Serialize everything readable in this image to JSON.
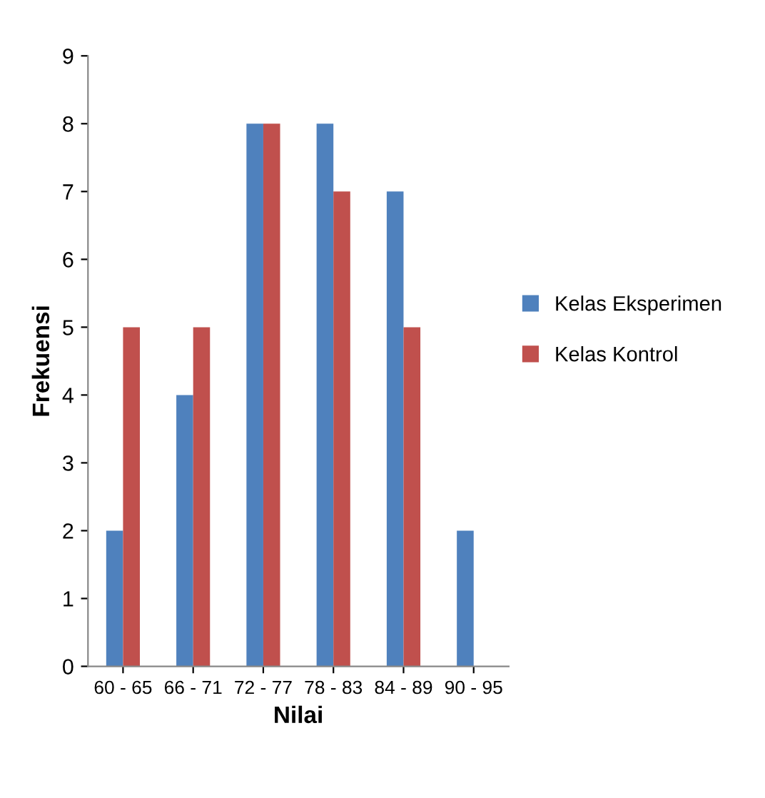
{
  "chart_data": {
    "type": "bar",
    "xlabel": "Nilai",
    "ylabel": "Frekuensi",
    "categories": [
      "60 - 65",
      "66 - 71",
      "72 - 77",
      "78 - 83",
      "84 - 89",
      "90 - 95"
    ],
    "series": [
      {
        "name": "Kelas Eksperimen",
        "color": "#4f81bd",
        "values": [
          2,
          4,
          8,
          8,
          7,
          2
        ]
      },
      {
        "name": "Kelas Kontrol",
        "color": "#c0504d",
        "values": [
          5,
          5,
          8,
          7,
          5,
          0
        ]
      }
    ],
    "ylim": [
      0,
      9
    ],
    "yticks": [
      0,
      1,
      2,
      3,
      4,
      5,
      6,
      7,
      8,
      9
    ],
    "grid": false,
    "legend": "right"
  }
}
